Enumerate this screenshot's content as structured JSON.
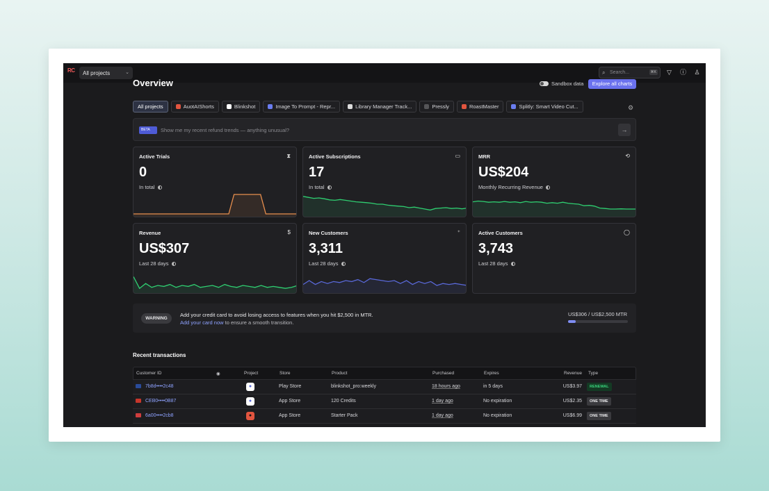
{
  "topbar": {
    "logo": "RC",
    "project_select": "All projects",
    "search_placeholder": "Search...",
    "search_shortcut": "⌘K"
  },
  "page": {
    "title": "Overview",
    "sandbox_label": "Sandbox data",
    "explore_button": "Explore all charts"
  },
  "projects": [
    {
      "label": "All projects",
      "color": ""
    },
    {
      "label": "AuotAIShorts",
      "color": "#e2553f"
    },
    {
      "label": "Blinkshot",
      "color": "#ffffff"
    },
    {
      "label": "Image To Prompt - Repr...",
      "color": "#6a7df0"
    },
    {
      "label": "Library Manager Track...",
      "color": "#dddddd"
    },
    {
      "label": "Pressly",
      "color": "#555558"
    },
    {
      "label": "RoastMaster",
      "color": "#e2553f"
    },
    {
      "label": "Splitly: Smart Video Cut...",
      "color": "#6a7df0"
    }
  ],
  "ai": {
    "badge": "BETA",
    "prompt": "Show me my recent refund trends — anything unusual?"
  },
  "cards": [
    {
      "title": "Active Trials",
      "value": "0",
      "sub": "In total",
      "icon": "hourglass-icon",
      "glyph": "⧗",
      "color": "#e88f4e",
      "series": [
        0,
        0,
        0,
        0,
        0,
        0,
        0,
        0,
        0,
        0,
        0,
        0,
        0,
        0,
        0,
        0,
        0,
        0,
        0,
        1,
        1,
        1,
        1,
        1,
        1,
        0,
        0,
        0,
        0,
        0,
        0,
        0
      ]
    },
    {
      "title": "Active Subscriptions",
      "value": "17",
      "sub": "In total",
      "icon": "calendar-icon",
      "glyph": "▭",
      "color": "#2fcf71",
      "series": [
        0.9,
        0.85,
        0.8,
        0.82,
        0.78,
        0.72,
        0.7,
        0.74,
        0.7,
        0.66,
        0.62,
        0.6,
        0.58,
        0.55,
        0.5,
        0.5,
        0.45,
        0.42,
        0.4,
        0.38,
        0.32,
        0.35,
        0.3,
        0.25,
        0.2,
        0.28,
        0.3,
        0.32,
        0.28,
        0.3,
        0.26,
        0.3
      ]
    },
    {
      "title": "MRR",
      "value": "US$204",
      "sub": "Monthly Recurring Revenue",
      "icon": "refresh-icon",
      "glyph": "⟲",
      "color": "#2fcf71",
      "series": [
        0.62,
        0.66,
        0.64,
        0.6,
        0.62,
        0.6,
        0.64,
        0.6,
        0.62,
        0.58,
        0.64,
        0.6,
        0.62,
        0.6,
        0.55,
        0.58,
        0.55,
        0.6,
        0.55,
        0.52,
        0.5,
        0.42,
        0.44,
        0.4,
        0.3,
        0.28,
        0.25,
        0.25,
        0.26,
        0.25,
        0.25,
        0.25
      ]
    },
    {
      "title": "Revenue",
      "value": "US$307",
      "sub": "Last 28 days",
      "icon": "dollar-icon",
      "glyph": "$",
      "color": "#2fcf71",
      "series": [
        0.7,
        0.1,
        0.35,
        0.15,
        0.25,
        0.2,
        0.3,
        0.15,
        0.25,
        0.2,
        0.3,
        0.15,
        0.2,
        0.25,
        0.15,
        0.3,
        0.2,
        0.15,
        0.25,
        0.2,
        0.15,
        0.25,
        0.15,
        0.2,
        0.15,
        0.1,
        0.15,
        0.25
      ]
    },
    {
      "title": "New Customers",
      "value": "3,311",
      "sub": "Last 28 days",
      "icon": "add-user-icon",
      "glyph": "⁺",
      "color": "#5968d8",
      "series": [
        0.3,
        0.5,
        0.3,
        0.45,
        0.35,
        0.45,
        0.4,
        0.5,
        0.45,
        0.55,
        0.4,
        0.6,
        0.55,
        0.5,
        0.45,
        0.5,
        0.35,
        0.5,
        0.3,
        0.45,
        0.35,
        0.45,
        0.25,
        0.35,
        0.3,
        0.35,
        0.3,
        0.25
      ]
    },
    {
      "title": "Active Customers",
      "value": "3,743",
      "sub": "Last 28 days",
      "icon": "user-icon",
      "glyph": "◯",
      "color": "",
      "series": []
    }
  ],
  "warning": {
    "badge": "WARNING",
    "line1": "Add your credit card to avoid losing access to features when you hit $2,500 in MTR.",
    "link": "Add your card now",
    "line2_rest": " to ensure a smooth transition.",
    "usage": "US$306 / US$2,500 MTR",
    "usage_fraction": 0.1224
  },
  "transactions": {
    "title": "Recent transactions",
    "columns": [
      "Customer ID",
      "Project",
      "Store",
      "Product",
      "Purchased",
      "Expires",
      "Revenue",
      "Type"
    ],
    "rows": [
      {
        "flag": "#2a4b9a",
        "id": "7b8d••••2c48",
        "project_color": "#ffffff",
        "store": "Play Store",
        "product": "blinkshot_pro:weekly",
        "purchased": "18 hours ago",
        "expires": "in 5 days",
        "revenue": "US$3.97",
        "type": "RENEWAL",
        "type_bg": "#143a24",
        "type_fg": "#39d27b"
      },
      {
        "flag": "#c7362b",
        "id": "CEB0••••0B87",
        "project_color": "#ffffff",
        "store": "App Store",
        "product": "120 Credits",
        "purchased": "1 day ago",
        "expires": "No expiration",
        "revenue": "US$2.35",
        "type": "ONE TIME",
        "type_bg": "#3a3a3e",
        "type_fg": "#e8e8ea"
      },
      {
        "flag": "#cf3d3d",
        "id": "6a00••••2cb8",
        "project_color": "#e2553f",
        "store": "App Store",
        "product": "Starter Pack",
        "purchased": "1 day ago",
        "expires": "No expiration",
        "revenue": "US$6.99",
        "type": "ONE TIME",
        "type_bg": "#3a3a3e",
        "type_fg": "#e8e8ea"
      }
    ]
  }
}
